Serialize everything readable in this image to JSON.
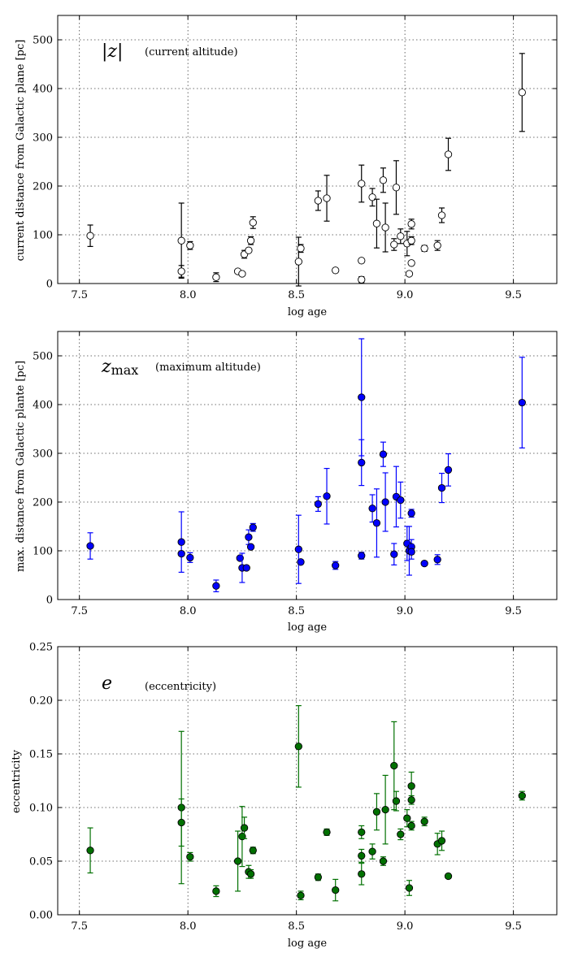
{
  "chart_data": [
    {
      "type": "scatter",
      "id": "z",
      "symbol": "|z|",
      "note": "(current altitude)",
      "xlabel": "log age",
      "ylabel": "current distance from Galactic plane [pc]",
      "xlim": [
        7.4,
        9.7
      ],
      "ylim": [
        0,
        550
      ],
      "xticks": [
        7.5,
        8.0,
        8.5,
        9.0,
        9.5
      ],
      "xtick_labels": [
        "7.5",
        "8.0",
        "8.5",
        "9.0",
        "9.5"
      ],
      "yticks": [
        0,
        100,
        200,
        300,
        400,
        500
      ],
      "ytick_labels": [
        "0",
        "100",
        "200",
        "300",
        "400",
        "500"
      ],
      "marker": "open-circle",
      "color": "#000000",
      "fill": "#ffffff",
      "grid": true,
      "points": [
        {
          "x": 7.55,
          "y": 98,
          "err": 22
        },
        {
          "x": 7.97,
          "y": 88,
          "err": 77
        },
        {
          "x": 7.97,
          "y": 25,
          "err": 12
        },
        {
          "x": 8.01,
          "y": 78,
          "err": 8
        },
        {
          "x": 8.13,
          "y": 13,
          "err": 9
        },
        {
          "x": 8.23,
          "y": 25,
          "err": 0
        },
        {
          "x": 8.25,
          "y": 20,
          "err": 0
        },
        {
          "x": 8.26,
          "y": 60,
          "err": 8
        },
        {
          "x": 8.28,
          "y": 68,
          "err": 0
        },
        {
          "x": 8.29,
          "y": 88,
          "err": 8
        },
        {
          "x": 8.3,
          "y": 125,
          "err": 12
        },
        {
          "x": 8.51,
          "y": 45,
          "err": 50
        },
        {
          "x": 8.52,
          "y": 72,
          "err": 8
        },
        {
          "x": 8.6,
          "y": 170,
          "err": 20
        },
        {
          "x": 8.64,
          "y": 175,
          "err": 47
        },
        {
          "x": 8.68,
          "y": 27,
          "err": 0
        },
        {
          "x": 8.8,
          "y": 205,
          "err": 38
        },
        {
          "x": 8.8,
          "y": 47,
          "err": 0
        },
        {
          "x": 8.8,
          "y": 8,
          "err": 6
        },
        {
          "x": 8.85,
          "y": 177,
          "err": 18
        },
        {
          "x": 8.87,
          "y": 123,
          "err": 50
        },
        {
          "x": 8.9,
          "y": 212,
          "err": 25
        },
        {
          "x": 8.91,
          "y": 115,
          "err": 50
        },
        {
          "x": 8.95,
          "y": 80,
          "err": 12
        },
        {
          "x": 8.96,
          "y": 197,
          "err": 55
        },
        {
          "x": 8.98,
          "y": 97,
          "err": 15
        },
        {
          "x": 9.01,
          "y": 82,
          "err": 25
        },
        {
          "x": 9.02,
          "y": 20,
          "err": 0
        },
        {
          "x": 9.03,
          "y": 42,
          "err": 0
        },
        {
          "x": 9.03,
          "y": 122,
          "err": 10
        },
        {
          "x": 9.03,
          "y": 88,
          "err": 8
        },
        {
          "x": 9.09,
          "y": 72,
          "err": 6
        },
        {
          "x": 9.15,
          "y": 78,
          "err": 10
        },
        {
          "x": 9.17,
          "y": 140,
          "err": 15
        },
        {
          "x": 9.2,
          "y": 265,
          "err": 33
        },
        {
          "x": 9.54,
          "y": 392,
          "err": 80
        }
      ]
    },
    {
      "type": "scatter",
      "id": "zmax",
      "symbol": "z",
      "symbol_sub": "max",
      "note": "(maximum altitude)",
      "xlabel": "log age",
      "ylabel": "max. distance from Galactic plante [pc]",
      "xlim": [
        7.4,
        9.7
      ],
      "ylim": [
        0,
        550
      ],
      "xticks": [
        7.5,
        8.0,
        8.5,
        9.0,
        9.5
      ],
      "xtick_labels": [
        "7.5",
        "8.0",
        "8.5",
        "9.0",
        "9.5"
      ],
      "yticks": [
        0,
        100,
        200,
        300,
        400,
        500
      ],
      "ytick_labels": [
        "0",
        "100",
        "200",
        "300",
        "400",
        "500"
      ],
      "marker": "filled-circle",
      "color": "#0000ff",
      "fill": "#0000ff",
      "grid": true,
      "points": [
        {
          "x": 7.55,
          "y": 110,
          "err": 27
        },
        {
          "x": 7.97,
          "y": 118,
          "err": 62
        },
        {
          "x": 7.97,
          "y": 94,
          "err": 0
        },
        {
          "x": 8.01,
          "y": 86,
          "err": 10
        },
        {
          "x": 8.13,
          "y": 28,
          "err": 12
        },
        {
          "x": 8.24,
          "y": 85,
          "err": 0
        },
        {
          "x": 8.25,
          "y": 65,
          "err": 30
        },
        {
          "x": 8.27,
          "y": 65,
          "err": 0
        },
        {
          "x": 8.28,
          "y": 128,
          "err": 15
        },
        {
          "x": 8.29,
          "y": 108,
          "err": 0
        },
        {
          "x": 8.3,
          "y": 148,
          "err": 8
        },
        {
          "x": 8.51,
          "y": 103,
          "err": 70
        },
        {
          "x": 8.52,
          "y": 77,
          "err": 0
        },
        {
          "x": 8.6,
          "y": 196,
          "err": 15
        },
        {
          "x": 8.64,
          "y": 212,
          "err": 57
        },
        {
          "x": 8.68,
          "y": 70,
          "err": 8
        },
        {
          "x": 8.8,
          "y": 415,
          "err": 120
        },
        {
          "x": 8.8,
          "y": 281,
          "err": 47
        },
        {
          "x": 8.8,
          "y": 90,
          "err": 7
        },
        {
          "x": 8.85,
          "y": 187,
          "err": 28
        },
        {
          "x": 8.87,
          "y": 157,
          "err": 70
        },
        {
          "x": 8.9,
          "y": 298,
          "err": 25
        },
        {
          "x": 8.91,
          "y": 200,
          "err": 60
        },
        {
          "x": 8.95,
          "y": 93,
          "err": 22
        },
        {
          "x": 8.96,
          "y": 211,
          "err": 62
        },
        {
          "x": 8.98,
          "y": 204,
          "err": 37
        },
        {
          "x": 9.01,
          "y": 115,
          "err": 35
        },
        {
          "x": 9.02,
          "y": 100,
          "err": 50
        },
        {
          "x": 9.03,
          "y": 108,
          "err": 15
        },
        {
          "x": 9.03,
          "y": 98,
          "err": 15
        },
        {
          "x": 9.03,
          "y": 177,
          "err": 8
        },
        {
          "x": 9.09,
          "y": 74,
          "err": 0
        },
        {
          "x": 9.15,
          "y": 82,
          "err": 10
        },
        {
          "x": 9.17,
          "y": 229,
          "err": 30
        },
        {
          "x": 9.2,
          "y": 266,
          "err": 33
        },
        {
          "x": 9.54,
          "y": 404,
          "err": 93
        }
      ]
    },
    {
      "type": "scatter",
      "id": "e",
      "symbol": "e",
      "note": "(eccentricity)",
      "xlabel": "log age",
      "ylabel": "eccentricity",
      "xlim": [
        7.4,
        9.7
      ],
      "ylim": [
        0,
        0.25
      ],
      "xticks": [
        7.5,
        8.0,
        8.5,
        9.0,
        9.5
      ],
      "xtick_labels": [
        "7.5",
        "8.0",
        "8.5",
        "9.0",
        "9.5"
      ],
      "yticks": [
        0,
        0.05,
        0.1,
        0.15,
        0.2,
        0.25
      ],
      "ytick_labels": [
        "0.00",
        "0.05",
        "0.10",
        "0.15",
        "0.20",
        "0.25"
      ],
      "marker": "filled-circle",
      "color": "#007000",
      "fill": "#007000",
      "grid": true,
      "points": [
        {
          "x": 7.55,
          "y": 0.06,
          "err": 0.021
        },
        {
          "x": 7.97,
          "y": 0.1,
          "err": 0.071
        },
        {
          "x": 7.97,
          "y": 0.086,
          "err": 0.022
        },
        {
          "x": 8.01,
          "y": 0.054,
          "err": 0.004
        },
        {
          "x": 8.13,
          "y": 0.022,
          "err": 0.005
        },
        {
          "x": 8.23,
          "y": 0.05,
          "err": 0.028
        },
        {
          "x": 8.25,
          "y": 0.073,
          "err": 0.028
        },
        {
          "x": 8.26,
          "y": 0.081,
          "err": 0.01
        },
        {
          "x": 8.28,
          "y": 0.04,
          "err": 0.006
        },
        {
          "x": 8.29,
          "y": 0.038,
          "err": 0.004
        },
        {
          "x": 8.3,
          "y": 0.06,
          "err": 0.003
        },
        {
          "x": 8.51,
          "y": 0.157,
          "err": 0.038
        },
        {
          "x": 8.52,
          "y": 0.018,
          "err": 0.004
        },
        {
          "x": 8.6,
          "y": 0.035,
          "err": 0.003
        },
        {
          "x": 8.64,
          "y": 0.077,
          "err": 0.003
        },
        {
          "x": 8.68,
          "y": 0.023,
          "err": 0.01
        },
        {
          "x": 8.8,
          "y": 0.077,
          "err": 0.006
        },
        {
          "x": 8.8,
          "y": 0.055,
          "err": 0.006
        },
        {
          "x": 8.8,
          "y": 0.038,
          "err": 0.01
        },
        {
          "x": 8.85,
          "y": 0.059,
          "err": 0.007
        },
        {
          "x": 8.87,
          "y": 0.096,
          "err": 0.017
        },
        {
          "x": 8.9,
          "y": 0.05,
          "err": 0.004
        },
        {
          "x": 8.91,
          "y": 0.098,
          "err": 0.032
        },
        {
          "x": 8.95,
          "y": 0.139,
          "err": 0.041
        },
        {
          "x": 8.96,
          "y": 0.106,
          "err": 0.009
        },
        {
          "x": 8.98,
          "y": 0.075,
          "err": 0.005
        },
        {
          "x": 9.01,
          "y": 0.09,
          "err": 0.008
        },
        {
          "x": 9.02,
          "y": 0.025,
          "err": 0.007
        },
        {
          "x": 9.03,
          "y": 0.12,
          "err": 0.013
        },
        {
          "x": 9.03,
          "y": 0.107,
          "err": 0.004
        },
        {
          "x": 9.03,
          "y": 0.083,
          "err": 0.004
        },
        {
          "x": 9.09,
          "y": 0.087,
          "err": 0.004
        },
        {
          "x": 9.15,
          "y": 0.066,
          "err": 0.01
        },
        {
          "x": 9.17,
          "y": 0.069,
          "err": 0.009
        },
        {
          "x": 9.2,
          "y": 0.036,
          "err": 0.002
        },
        {
          "x": 9.54,
          "y": 0.111,
          "err": 0.004
        }
      ]
    }
  ]
}
